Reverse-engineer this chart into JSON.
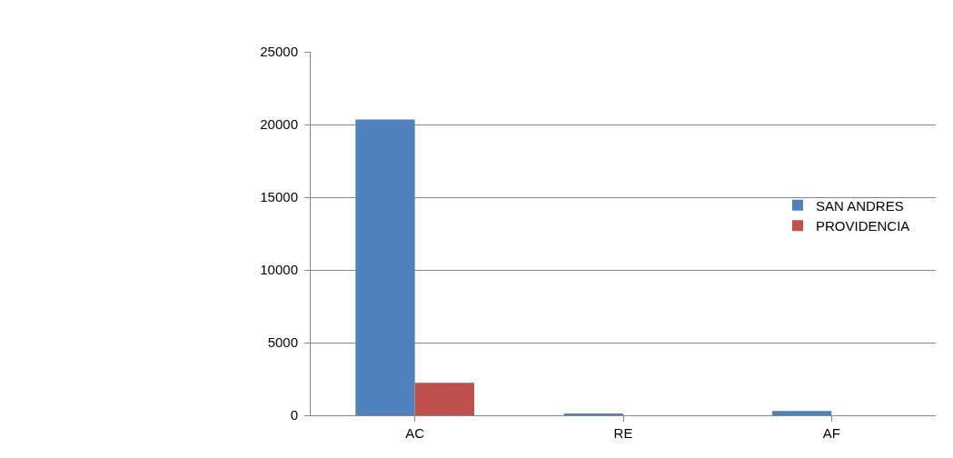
{
  "chart_data": {
    "type": "bar",
    "categories": [
      "AC",
      "RE",
      "AF"
    ],
    "series": [
      {
        "name": "SAN ANDRES",
        "color": "#4f81bd",
        "values": [
          20350,
          100,
          290
        ]
      },
      {
        "name": "PROVIDENCIA",
        "color": "#c0504d",
        "values": [
          2240,
          0,
          0
        ]
      }
    ],
    "ylim": [
      0,
      25000
    ],
    "yticks": [
      0,
      5000,
      10000,
      15000,
      20000,
      25000
    ],
    "grid": "y",
    "legend": "right"
  }
}
